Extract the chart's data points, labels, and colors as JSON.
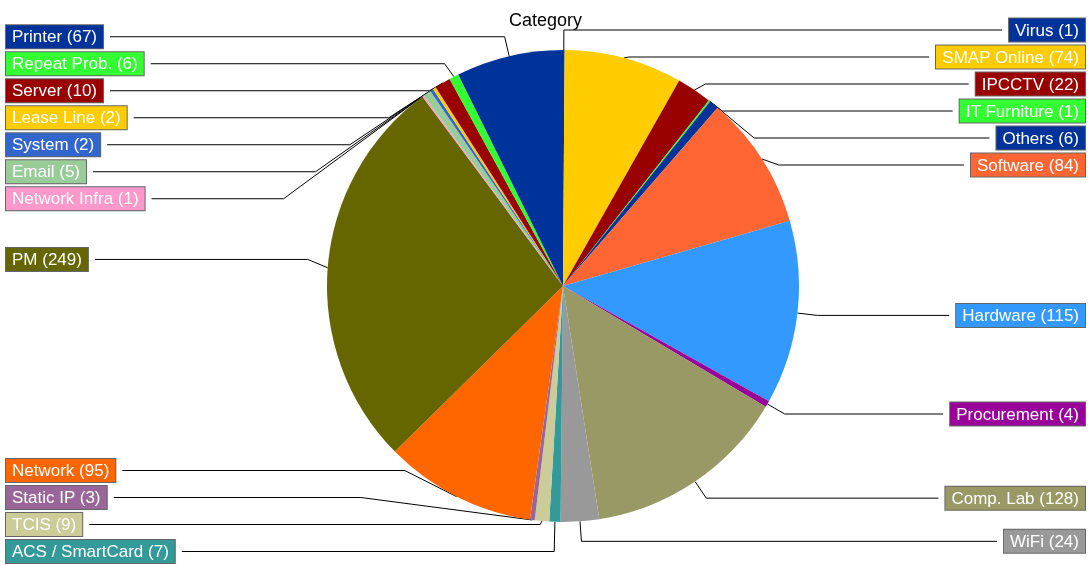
{
  "chart_data": {
    "type": "pie",
    "title": "Category",
    "categories": [
      "Virus",
      "SMAP Online",
      "IPCCTV",
      "IT Furniture",
      "Others",
      "Software",
      "Hardware",
      "Procurement",
      "Comp. Lab",
      "WiFi",
      "ACS / SmartCard",
      "TCIS",
      "Static IP",
      "Network",
      "PM",
      "Network Infra",
      "Email",
      "System",
      "Lease Line",
      "Server",
      "Repeat Prob.",
      "Printer"
    ],
    "values": [
      1,
      74,
      22,
      1,
      6,
      84,
      115,
      4,
      128,
      24,
      7,
      9,
      3,
      95,
      249,
      1,
      5,
      2,
      2,
      10,
      6,
      67
    ],
    "colors": [
      "#003399",
      "#ffcc00",
      "#990000",
      "#33ff33",
      "#003399",
      "#ff6633",
      "#3399ff",
      "#990099",
      "#999966",
      "#999999",
      "#339999",
      "#cccc99",
      "#996699",
      "#ff6600",
      "#666600",
      "#ff99cc",
      "#99cc99",
      "#3366cc",
      "#ffcc00",
      "#990000",
      "#33ff33",
      "#003399"
    ],
    "value_labels": [
      "(1)",
      "(74)",
      "(22)",
      "(1)",
      "(6)",
      "(84)",
      "(115)",
      "(4)",
      "(128)",
      "(24)",
      "(7)",
      "(9)",
      "(3)",
      "(95)",
      "(249)",
      "(1)",
      "(5)",
      "(2)",
      "(2)",
      "(10)",
      "(6)",
      "(67)"
    ],
    "legend": false
  }
}
